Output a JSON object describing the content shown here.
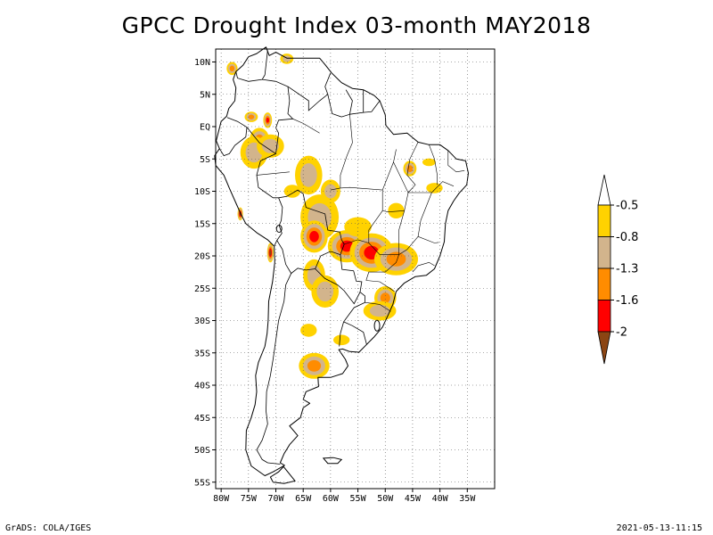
{
  "title": "GPCC Drought Index 03-month MAY2018",
  "footer": {
    "software": "GrADS: COLA/IGES",
    "timestamp": "2021-05-13-11:15"
  },
  "map": {
    "lon_range": [
      -81,
      -30
    ],
    "lat_range": [
      -56,
      12
    ],
    "lat_ticks": [
      {
        "value": 10,
        "label": "10N"
      },
      {
        "value": 5,
        "label": "5N"
      },
      {
        "value": 0,
        "label": "EQ"
      },
      {
        "value": -5,
        "label": "5S"
      },
      {
        "value": -10,
        "label": "10S"
      },
      {
        "value": -15,
        "label": "15S"
      },
      {
        "value": -20,
        "label": "20S"
      },
      {
        "value": -25,
        "label": "25S"
      },
      {
        "value": -30,
        "label": "30S"
      },
      {
        "value": -35,
        "label": "35S"
      },
      {
        "value": -40,
        "label": "40S"
      },
      {
        "value": -45,
        "label": "45S"
      },
      {
        "value": -50,
        "label": "50S"
      },
      {
        "value": -55,
        "label": "55S"
      }
    ],
    "lon_ticks": [
      {
        "value": -80,
        "label": "80W"
      },
      {
        "value": -75,
        "label": "75W"
      },
      {
        "value": -70,
        "label": "70W"
      },
      {
        "value": -65,
        "label": "65W"
      },
      {
        "value": -60,
        "label": "60W"
      },
      {
        "value": -55,
        "label": "55W"
      },
      {
        "value": -50,
        "label": "50W"
      },
      {
        "value": -45,
        "label": "45W"
      },
      {
        "value": -40,
        "label": "40W"
      },
      {
        "value": -35,
        "label": "35W"
      }
    ],
    "grid": "dotted"
  },
  "legend": {
    "bins": [
      {
        "color": "#ffffff",
        "label": "-0.5"
      },
      {
        "color": "#ffd200",
        "label": "-0.8"
      },
      {
        "color": "#d2b48c",
        "label": "-1.3"
      },
      {
        "color": "#ff8c00",
        "label": "-1.6"
      },
      {
        "color": "#ff0000",
        "label": "-2"
      },
      {
        "color": "#8b4513",
        "label": ""
      }
    ]
  },
  "drought_regions": [
    {
      "lon": -57.0,
      "lat": -18.5,
      "level": 4,
      "rx": 3.5,
      "ry": 2.5
    },
    {
      "lon": -52.5,
      "lat": -19.5,
      "level": 4,
      "rx": 4.0,
      "ry": 3.0
    },
    {
      "lon": -48.0,
      "lat": -20.5,
      "level": 3,
      "rx": 4.0,
      "ry": 2.5
    },
    {
      "lon": -55.0,
      "lat": -15.5,
      "level": 1,
      "rx": 2.5,
      "ry": 1.5
    },
    {
      "lon": -62.0,
      "lat": -14.0,
      "level": 2,
      "rx": 3.5,
      "ry": 3.5
    },
    {
      "lon": -63.0,
      "lat": -17.0,
      "level": 4,
      "rx": 2.5,
      "ry": 2.5
    },
    {
      "lon": -64.0,
      "lat": -7.5,
      "level": 2,
      "rx": 2.5,
      "ry": 3.0
    },
    {
      "lon": -60.0,
      "lat": -10.0,
      "level": 2,
      "rx": 1.8,
      "ry": 1.8
    },
    {
      "lon": -73.0,
      "lat": -2.0,
      "level": 3,
      "rx": 1.8,
      "ry": 1.8
    },
    {
      "lon": -74.0,
      "lat": -4.0,
      "level": 2,
      "rx": 2.5,
      "ry": 2.5
    },
    {
      "lon": -71.0,
      "lat": -3.0,
      "level": 2,
      "rx": 2.5,
      "ry": 1.8
    },
    {
      "lon": -71.5,
      "lat": 1.0,
      "level": 4,
      "rx": 0.8,
      "ry": 1.2
    },
    {
      "lon": -74.5,
      "lat": 1.5,
      "level": 3,
      "rx": 1.2,
      "ry": 0.8
    },
    {
      "lon": -78.0,
      "lat": 9.0,
      "level": 3,
      "rx": 1.0,
      "ry": 1.0
    },
    {
      "lon": -68.0,
      "lat": 10.5,
      "level": 2,
      "rx": 1.2,
      "ry": 0.8
    },
    {
      "lon": -63.0,
      "lat": -23.0,
      "level": 2,
      "rx": 2.0,
      "ry": 2.5
    },
    {
      "lon": -61.0,
      "lat": -25.5,
      "level": 2,
      "rx": 2.5,
      "ry": 2.5
    },
    {
      "lon": -50.0,
      "lat": -26.5,
      "level": 3,
      "rx": 2.0,
      "ry": 1.8
    },
    {
      "lon": -51.0,
      "lat": -28.5,
      "level": 2,
      "rx": 3.0,
      "ry": 1.5
    },
    {
      "lon": -63.0,
      "lat": -37.0,
      "level": 3,
      "rx": 2.8,
      "ry": 2.0
    },
    {
      "lon": -71.0,
      "lat": -19.5,
      "level": 5,
      "rx": 0.6,
      "ry": 1.5
    },
    {
      "lon": -76.5,
      "lat": -13.5,
      "level": 5,
      "rx": 0.5,
      "ry": 1.0
    },
    {
      "lon": -45.5,
      "lat": -6.5,
      "level": 3,
      "rx": 1.2,
      "ry": 1.2
    },
    {
      "lon": -41.0,
      "lat": -9.5,
      "level": 1,
      "rx": 1.5,
      "ry": 0.8
    },
    {
      "lon": -48.0,
      "lat": -13.0,
      "level": 1,
      "rx": 1.5,
      "ry": 1.2
    },
    {
      "lon": -42.0,
      "lat": -5.5,
      "level": 1,
      "rx": 1.2,
      "ry": 0.6
    },
    {
      "lon": -58.0,
      "lat": -33.0,
      "level": 1,
      "rx": 1.5,
      "ry": 0.8
    },
    {
      "lon": -64.0,
      "lat": -31.5,
      "level": 1,
      "rx": 1.5,
      "ry": 1.0
    },
    {
      "lon": -67.0,
      "lat": -10.0,
      "level": 1,
      "rx": 1.5,
      "ry": 1.0
    }
  ]
}
